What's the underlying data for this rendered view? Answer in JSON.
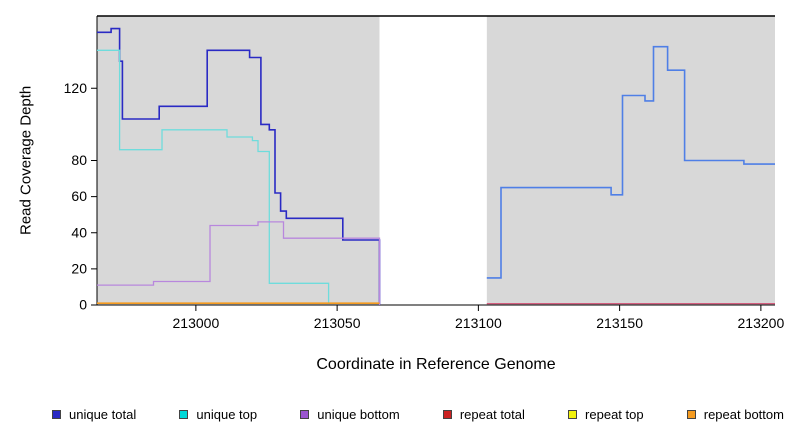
{
  "chart_data": {
    "type": "line",
    "step": true,
    "title": "",
    "xlabel": "Coordinate in Reference Genome",
    "ylabel": "Read Coverage Depth",
    "xlim": [
      212965,
      213205
    ],
    "ylim": [
      0,
      160
    ],
    "x_ticks": [
      213000,
      213050,
      213100,
      213150,
      213200
    ],
    "y_ticks": [
      0,
      20,
      40,
      60,
      80,
      120
    ],
    "plot_background": "#d8d8d8",
    "outer_background": "#ffffff",
    "grid": "off",
    "top_border_color": "#000000",
    "gap_region": {
      "x_start": 213065,
      "x_end": 213103,
      "color": "#ffffff"
    },
    "series": [
      {
        "id": "unique-total-left",
        "legend": "unique total",
        "color": "#2a2ac4",
        "width": 1.6,
        "points": [
          [
            212965,
            151
          ],
          [
            212970,
            151
          ],
          [
            212970,
            153
          ],
          [
            212973,
            153
          ],
          [
            212973,
            135
          ],
          [
            212974,
            135
          ],
          [
            212974,
            103
          ],
          [
            212987,
            103
          ],
          [
            212987,
            110
          ],
          [
            213004,
            110
          ],
          [
            213004,
            141
          ],
          [
            213019,
            141
          ],
          [
            213019,
            137
          ],
          [
            213023,
            137
          ],
          [
            213023,
            100
          ],
          [
            213026,
            100
          ],
          [
            213026,
            97
          ],
          [
            213028,
            97
          ],
          [
            213028,
            62
          ],
          [
            213030,
            62
          ],
          [
            213030,
            52
          ],
          [
            213032,
            52
          ],
          [
            213032,
            48
          ],
          [
            213052,
            48
          ],
          [
            213052,
            36
          ],
          [
            213065,
            36
          ],
          [
            213065,
            0
          ]
        ]
      },
      {
        "id": "unique-top",
        "legend": "unique top",
        "color": "#6fdcdc",
        "width": 1.3,
        "points": [
          [
            212965,
            141
          ],
          [
            212973,
            141
          ],
          [
            212973,
            86
          ],
          [
            212988,
            86
          ],
          [
            212988,
            97
          ],
          [
            213011,
            97
          ],
          [
            213011,
            93
          ],
          [
            213020,
            93
          ],
          [
            213020,
            91
          ],
          [
            213022,
            91
          ],
          [
            213022,
            85
          ],
          [
            213026,
            85
          ],
          [
            213026,
            12
          ],
          [
            213047,
            12
          ],
          [
            213047,
            1
          ],
          [
            213065,
            1
          ]
        ]
      },
      {
        "id": "unique-bottom",
        "legend": "unique bottom",
        "color": "#b887dd",
        "width": 1.3,
        "points": [
          [
            212965,
            11
          ],
          [
            212985,
            11
          ],
          [
            212985,
            13
          ],
          [
            213005,
            13
          ],
          [
            213005,
            44
          ],
          [
            213022,
            44
          ],
          [
            213022,
            46
          ],
          [
            213031,
            46
          ],
          [
            213031,
            37
          ],
          [
            213065,
            37
          ],
          [
            213065,
            0
          ]
        ]
      },
      {
        "id": "unique-total-right",
        "legend": "unique total",
        "color": "#4f7fe6",
        "width": 1.6,
        "points": [
          [
            213103,
            15
          ],
          [
            213108,
            15
          ],
          [
            213108,
            65
          ],
          [
            213147,
            65
          ],
          [
            213147,
            61
          ],
          [
            213151,
            61
          ],
          [
            213151,
            116
          ],
          [
            213159,
            116
          ],
          [
            213159,
            113
          ],
          [
            213162,
            113
          ],
          [
            213162,
            143
          ],
          [
            213167,
            143
          ],
          [
            213167,
            130
          ],
          [
            213173,
            130
          ],
          [
            213173,
            80
          ],
          [
            213194,
            80
          ],
          [
            213194,
            78
          ],
          [
            213205,
            78
          ]
        ]
      },
      {
        "id": "repeat-bottom",
        "legend": "repeat bottom",
        "color": "#f59b20",
        "width": 1.6,
        "points": [
          [
            212965,
            1
          ],
          [
            213065,
            1
          ]
        ]
      },
      {
        "id": "repeat-total-right",
        "legend": "repeat total",
        "color": "#d45d7e",
        "width": 1.3,
        "points": [
          [
            213103,
            0.8
          ],
          [
            213205,
            0.8
          ]
        ]
      }
    ]
  },
  "legend": {
    "items": [
      {
        "label": "unique total",
        "color": "#2a2ac4"
      },
      {
        "label": "unique top",
        "color": "#00d8d8"
      },
      {
        "label": "unique bottom",
        "color": "#9a55cf"
      },
      {
        "label": "repeat total",
        "color": "#cc2222"
      },
      {
        "label": "repeat top",
        "color": "#f2f20c"
      },
      {
        "label": "repeat bottom",
        "color": "#f59b20"
      }
    ]
  }
}
